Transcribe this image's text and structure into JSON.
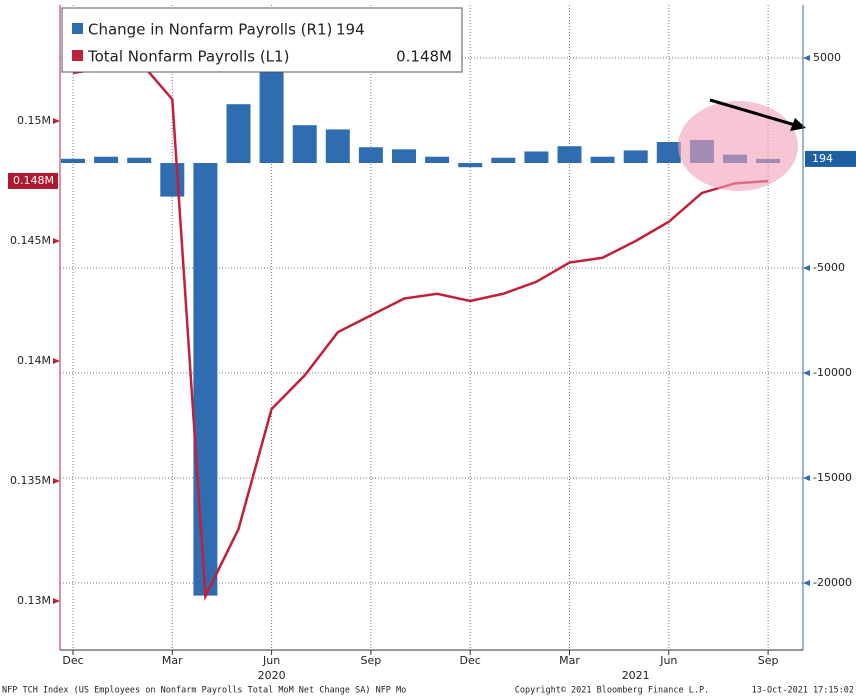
{
  "chart_data": {
    "type": "combo",
    "categories": [
      "Dec",
      null,
      null,
      "Mar",
      null,
      null,
      "Jun",
      null,
      null,
      "Sep",
      null,
      null,
      "Dec",
      null,
      null,
      "Mar",
      null,
      null,
      "Jun",
      null,
      null,
      "Sep"
    ],
    "years": [
      "2020",
      "2021"
    ],
    "series": [
      {
        "name": "Change in Nonfarm Payrolls (R1)",
        "type": "bar",
        "axis": "y2",
        "color": "#2f6db0",
        "last_label": "194",
        "values": [
          200,
          300,
          250,
          -1600,
          -20600,
          2800,
          5000,
          1800,
          1600,
          750,
          650,
          300,
          -200,
          250,
          550,
          800,
          300,
          600,
          1000,
          1100,
          400,
          194
        ]
      },
      {
        "name": "Total Nonfarm Payrolls (L1)",
        "type": "line",
        "axis": "y",
        "color": "#c21f3a",
        "last_label": "0.148M",
        "values": [
          0.152,
          0.1522,
          0.1525,
          0.1509,
          0.1302,
          0.133,
          0.138,
          0.1394,
          0.1412,
          0.1419,
          0.1426,
          0.1428,
          0.1425,
          0.1428,
          0.1433,
          0.1441,
          0.1443,
          0.145,
          0.1458,
          0.147,
          0.1474,
          0.1475
        ]
      }
    ],
    "ylim": [
      0.12796,
      0.15483
    ],
    "yticks": [
      {
        "value": 0.13,
        "label": "0.13M"
      },
      {
        "value": 0.135,
        "label": "0.135M"
      },
      {
        "value": 0.14,
        "label": "0.14M"
      },
      {
        "value": 0.145,
        "label": "0.145M"
      },
      {
        "value": 0.15,
        "label": "0.15M"
      }
    ],
    "y2lim": [
      -23190,
      7524
    ],
    "y2ticks": [
      -20000,
      -15000,
      -10000,
      -5000,
      5000
    ],
    "grid": true,
    "footer": {
      "left": "NFP TCH Index (US Employees on Nonfarm Payrolls Total MoM Net Change SA) NFP  Mo",
      "center": "Copyright© 2021 Bloomberg Finance L.P.",
      "right": "13-Oct-2021 17:15:02"
    }
  }
}
